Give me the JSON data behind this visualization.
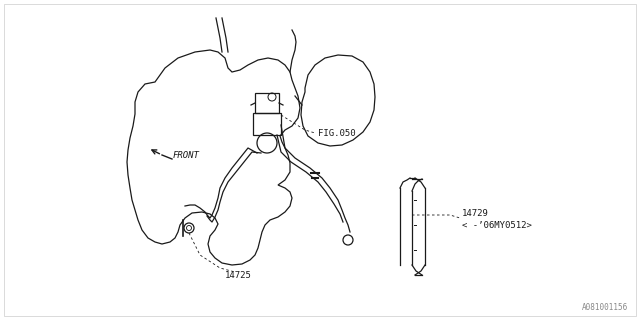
{
  "bg_color": "#ffffff",
  "line_color": "#1a1a1a",
  "label_color": "#1a1a1a",
  "fig_width": 6.4,
  "fig_height": 3.2,
  "dpi": 100,
  "labels": {
    "fig050": "FIG.050",
    "part14725": "14725",
    "part14729": "14729",
    "part14729_sub": "< -’06MY0512>",
    "front": "FRONT",
    "part_code": "A081001156"
  }
}
